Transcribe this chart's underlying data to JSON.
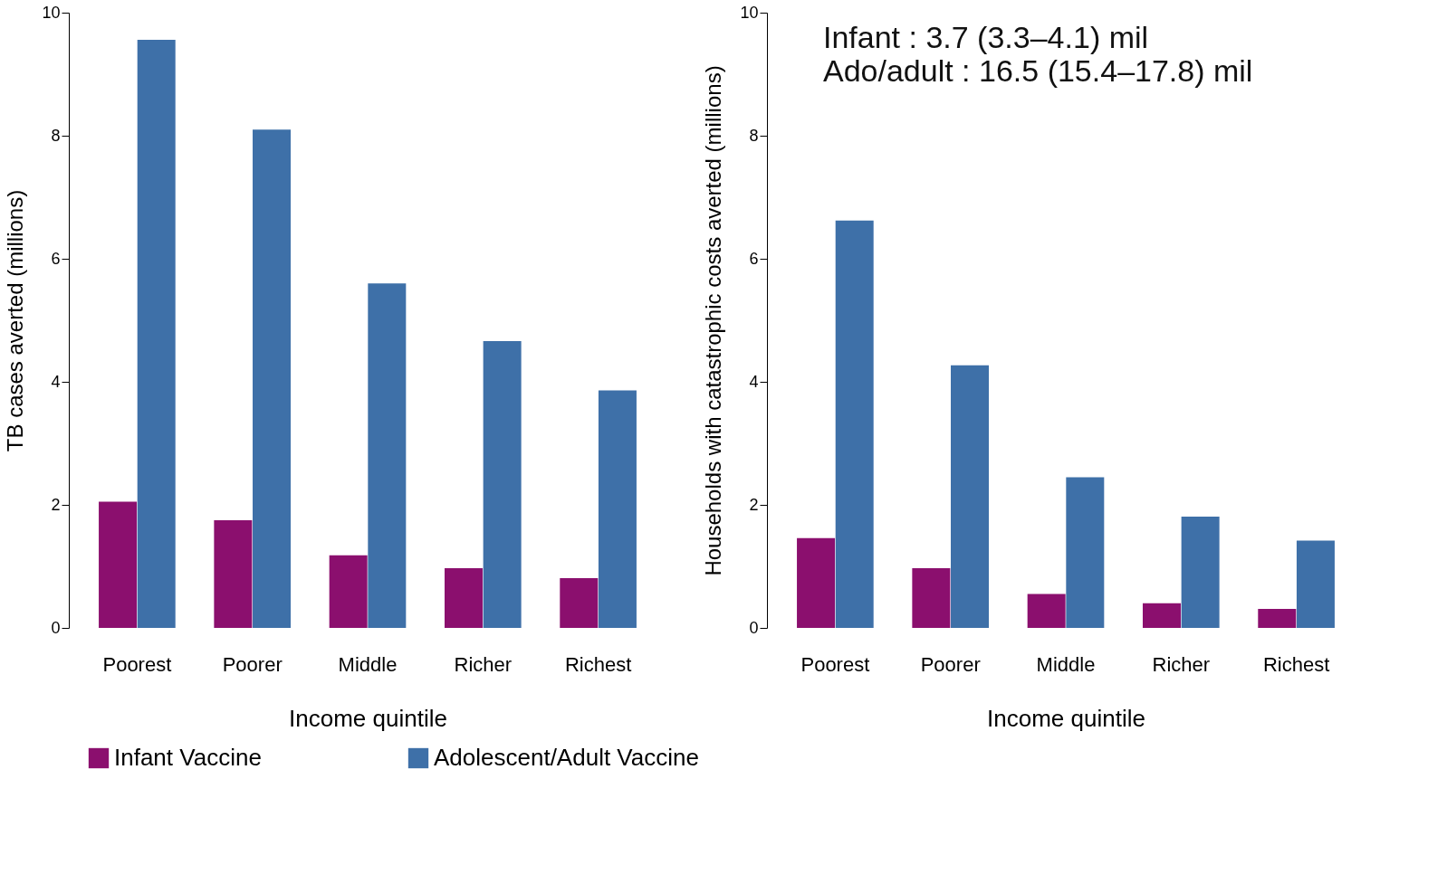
{
  "chart_data": [
    {
      "type": "bar",
      "xlabel": "Income quintile",
      "ylabel": "TB cases averted (millions)",
      "categories": [
        "Poorest",
        "Poorer",
        "Middle",
        "Richer",
        "Richest"
      ],
      "ylim": [
        0,
        10
      ],
      "yticks": [
        0,
        2,
        4,
        6,
        8,
        10
      ],
      "grid": false,
      "legend": "bottom",
      "series": [
        {
          "name": "Infant Vaccine",
          "color": "#8b0f6e",
          "values": [
            2.05,
            1.75,
            1.18,
            0.97,
            0.81
          ]
        },
        {
          "name": "Adolescent/Adult Vaccine",
          "color": "#3e70a8",
          "values": [
            9.56,
            8.1,
            5.6,
            4.66,
            3.86
          ]
        }
      ]
    },
    {
      "type": "bar",
      "xlabel": "Income quintile",
      "ylabel": "Households with catastrophic costs averted (millions)",
      "categories": [
        "Poorest",
        "Poorer",
        "Middle",
        "Richer",
        "Richest"
      ],
      "ylim": [
        0,
        10
      ],
      "yticks": [
        0,
        2,
        4,
        6,
        8,
        10
      ],
      "grid": false,
      "legend": "bottom",
      "annotations": [
        "Infant : 3.7 (3.3–4.1) mil",
        "Ado/adult : 16.5 (15.4–17.8) mil"
      ],
      "series": [
        {
          "name": "Infant Vaccine",
          "color": "#8b0f6e",
          "values": [
            1.46,
            0.97,
            0.55,
            0.4,
            0.31
          ]
        },
        {
          "name": "Adolescent/Adult Vaccine",
          "color": "#3e70a8",
          "values": [
            6.62,
            4.27,
            2.45,
            1.81,
            1.42
          ]
        }
      ]
    }
  ]
}
